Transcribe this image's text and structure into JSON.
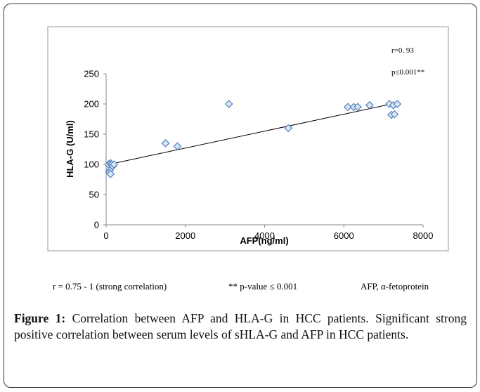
{
  "chart_data": {
    "type": "scatter",
    "x_label": "AFP(ng/ml)",
    "y_label": "HLA-G (U/ml)",
    "annotations": [
      "r=0. 93",
      "p≤0.001**"
    ],
    "x": [
      60,
      90,
      110,
      130,
      80,
      110,
      140,
      170,
      200,
      1500,
      1800,
      3100,
      4600,
      6100,
      6250,
      6350,
      6650,
      7150,
      7200,
      7250,
      7280,
      7350
    ],
    "values": [
      100,
      90,
      102,
      100,
      86,
      84,
      100,
      97,
      100,
      135,
      130,
      200,
      160,
      195,
      195,
      195,
      198,
      200,
      182,
      198,
      183,
      200
    ],
    "color": "#4f81bd",
    "trendline": {
      "x": [
        0,
        7350
      ],
      "y": [
        99,
        202
      ]
    },
    "xlim": [
      0,
      8000
    ],
    "xticks": [
      0,
      2000,
      4000,
      6000,
      8000
    ],
    "ylim": [
      0,
      250
    ],
    "yticks": [
      0,
      50,
      100,
      150,
      200,
      250
    ],
    "grid": false
  },
  "footnotes": [
    "r = 0.75 - 1 (strong correlation)",
    "** p-value ≤ 0.001",
    "AFP, α-fetoprotein"
  ],
  "caption": {
    "label": "Figure 1:",
    "text": "Correlation between AFP and HLA-G in HCC patients. Significant strong positive correlation between serum levels of sHLA-G and AFP in HCC patients."
  }
}
